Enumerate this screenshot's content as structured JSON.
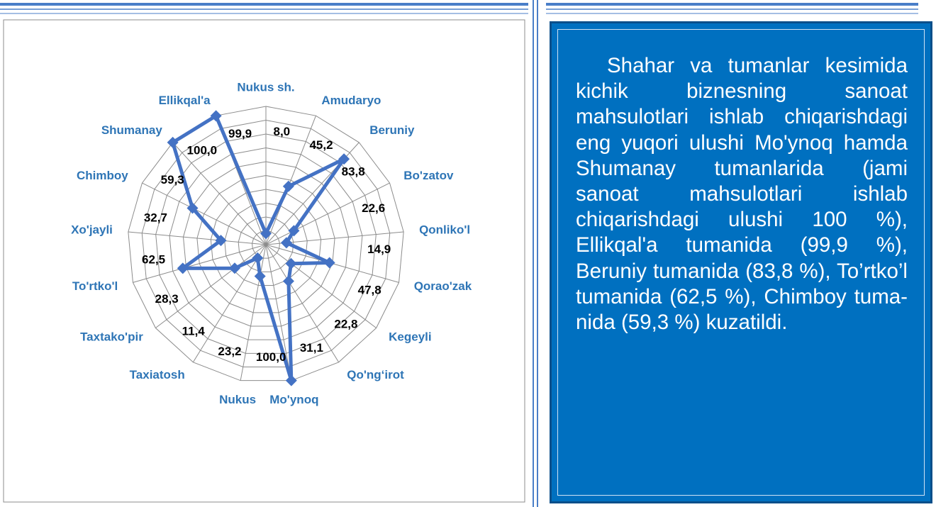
{
  "chart_data": {
    "type": "radar",
    "categories": [
      "Nukus sh.",
      "Amudaryo",
      "Beruniy",
      "Bo'zatov",
      "Qonliko'l",
      "Qorao'zak",
      "Kegeyli",
      "Qo'ng‘irot",
      "Mo'ynoq",
      "Nukus",
      "Taxiatosh",
      "Taxtako'pir",
      "To'rtko'l",
      "Xo'jayli",
      "Chimboy",
      "Shumanay",
      "Ellikqal'a"
    ],
    "values": [
      8.0,
      45.2,
      83.8,
      22.6,
      14.9,
      47.8,
      22.8,
      31.1,
      100.0,
      23.2,
      11.4,
      28.3,
      62.5,
      32.7,
      59.3,
      100.0,
      99.9
    ],
    "value_labels": [
      "8,0",
      "45,2",
      "83,8",
      "22,6",
      "14,9",
      "47,8",
      "22,8",
      "31,1",
      "100,0",
      "23,2",
      "11,4",
      "28,3",
      "62,5",
      "32,7",
      "59,3",
      "100,0",
      "99,9"
    ],
    "color": "#4472c4",
    "rlim": [
      0,
      100
    ],
    "rticks": [
      0,
      10,
      20,
      30,
      40,
      50,
      60,
      70,
      80,
      90,
      100
    ],
    "grid": true
  },
  "text_box": {
    "text": "Shahar va tumanlar kesimida kichik biznesning sanoat mahsulotlari ishlab chiqarishdagi eng yuqori ulushi Mo'ynoq hamda Shumanay tumanlarida (jami sanoat mahsulotlari ishlab chiqarishdagi ulushi 100 %), Ellikqal'a tumanida (99,9 %), Beruniy tumanida (83,8 %), To’rtko’l tumanida (62,5 %), Chimboy tuma-nida (59,3 %) kuzatildi."
  }
}
